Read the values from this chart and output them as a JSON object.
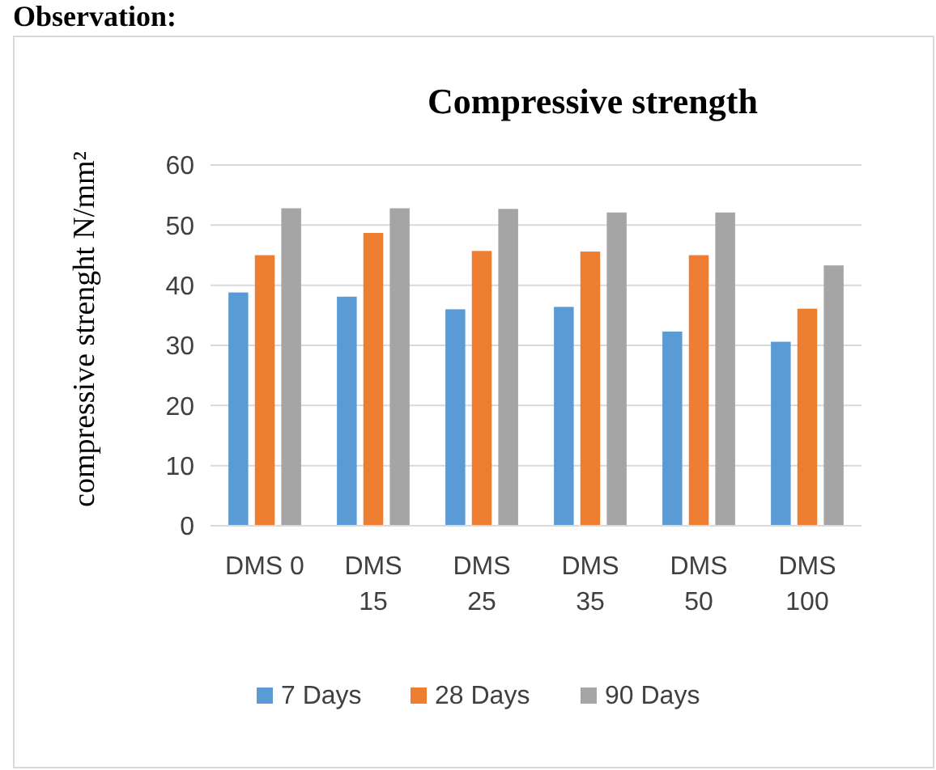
{
  "chart_data": {
    "type": "bar",
    "title": "Compressive strength",
    "ylabel": "compressive strenght N/mm²",
    "annotations": [
      "Observation:"
    ],
    "categories": [
      "DMS 0",
      "DMS 15",
      "DMS 25",
      "DMS 35",
      "DMS 50",
      "DMS 100"
    ],
    "series": [
      {
        "name": "7 Days",
        "color": "#5b9bd5",
        "values": [
          38.8,
          38.1,
          36.0,
          36.4,
          32.3,
          30.6
        ]
      },
      {
        "name": "28 Days",
        "color": "#ed7d31",
        "values": [
          45.0,
          48.7,
          45.7,
          45.6,
          45.0,
          36.1
        ]
      },
      {
        "name": "90 Days",
        "color": "#a5a5a5",
        "values": [
          52.8,
          52.8,
          52.7,
          52.1,
          52.1,
          43.3
        ]
      }
    ],
    "ylim": [
      0,
      60
    ],
    "yticks": [
      0,
      10,
      20,
      30,
      40,
      50,
      60
    ],
    "grid": "y",
    "legend": "bottom"
  }
}
